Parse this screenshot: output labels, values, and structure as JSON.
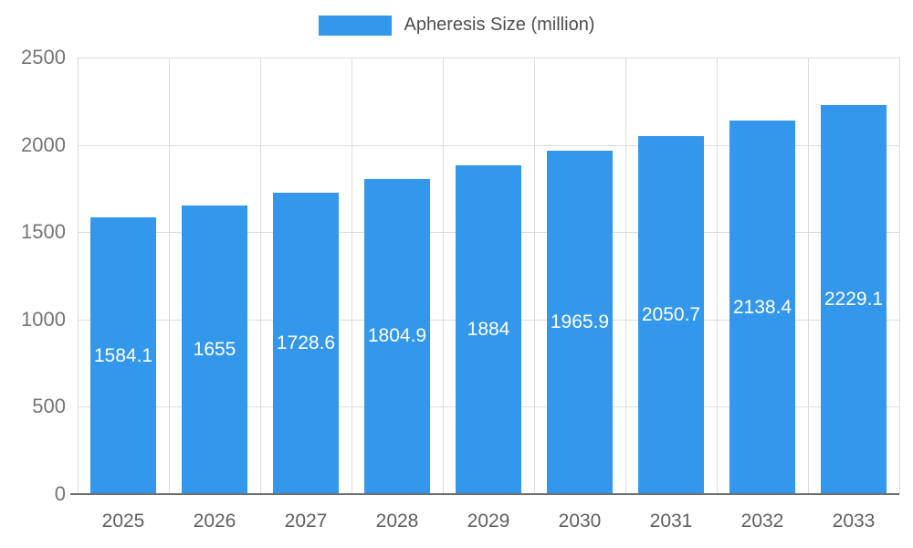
{
  "legend": {
    "label": "Apheresis Size (million)"
  },
  "chart_data": {
    "type": "bar",
    "title": "Apheresis Size (million)",
    "categories": [
      "2025",
      "2026",
      "2027",
      "2028",
      "2029",
      "2030",
      "2031",
      "2032",
      "2033"
    ],
    "values": [
      1584.1,
      1655,
      1728.6,
      1804.9,
      1884,
      1965.9,
      2050.7,
      2138.4,
      2229.1
    ],
    "labels": [
      "1584.1",
      "1655",
      "1728.6",
      "1804.9",
      "1884",
      "1965.9",
      "2050.7",
      "2138.4",
      "2229.1"
    ],
    "xlabel": "",
    "ylabel": "",
    "ylim": [
      0,
      2500
    ],
    "yticks": [
      0,
      500,
      1000,
      1500,
      2000,
      2500
    ],
    "grid": true,
    "legend_position": "top-center",
    "colors": {
      "bar": "#3398ec",
      "bar_label": "#ffffff",
      "gridline": "#dddddd",
      "axis_line": "#6e6e6e",
      "y_tick_text": "#757575",
      "x_tick_text": "#5f5f5f",
      "legend_text": "#4d4d4d"
    }
  }
}
